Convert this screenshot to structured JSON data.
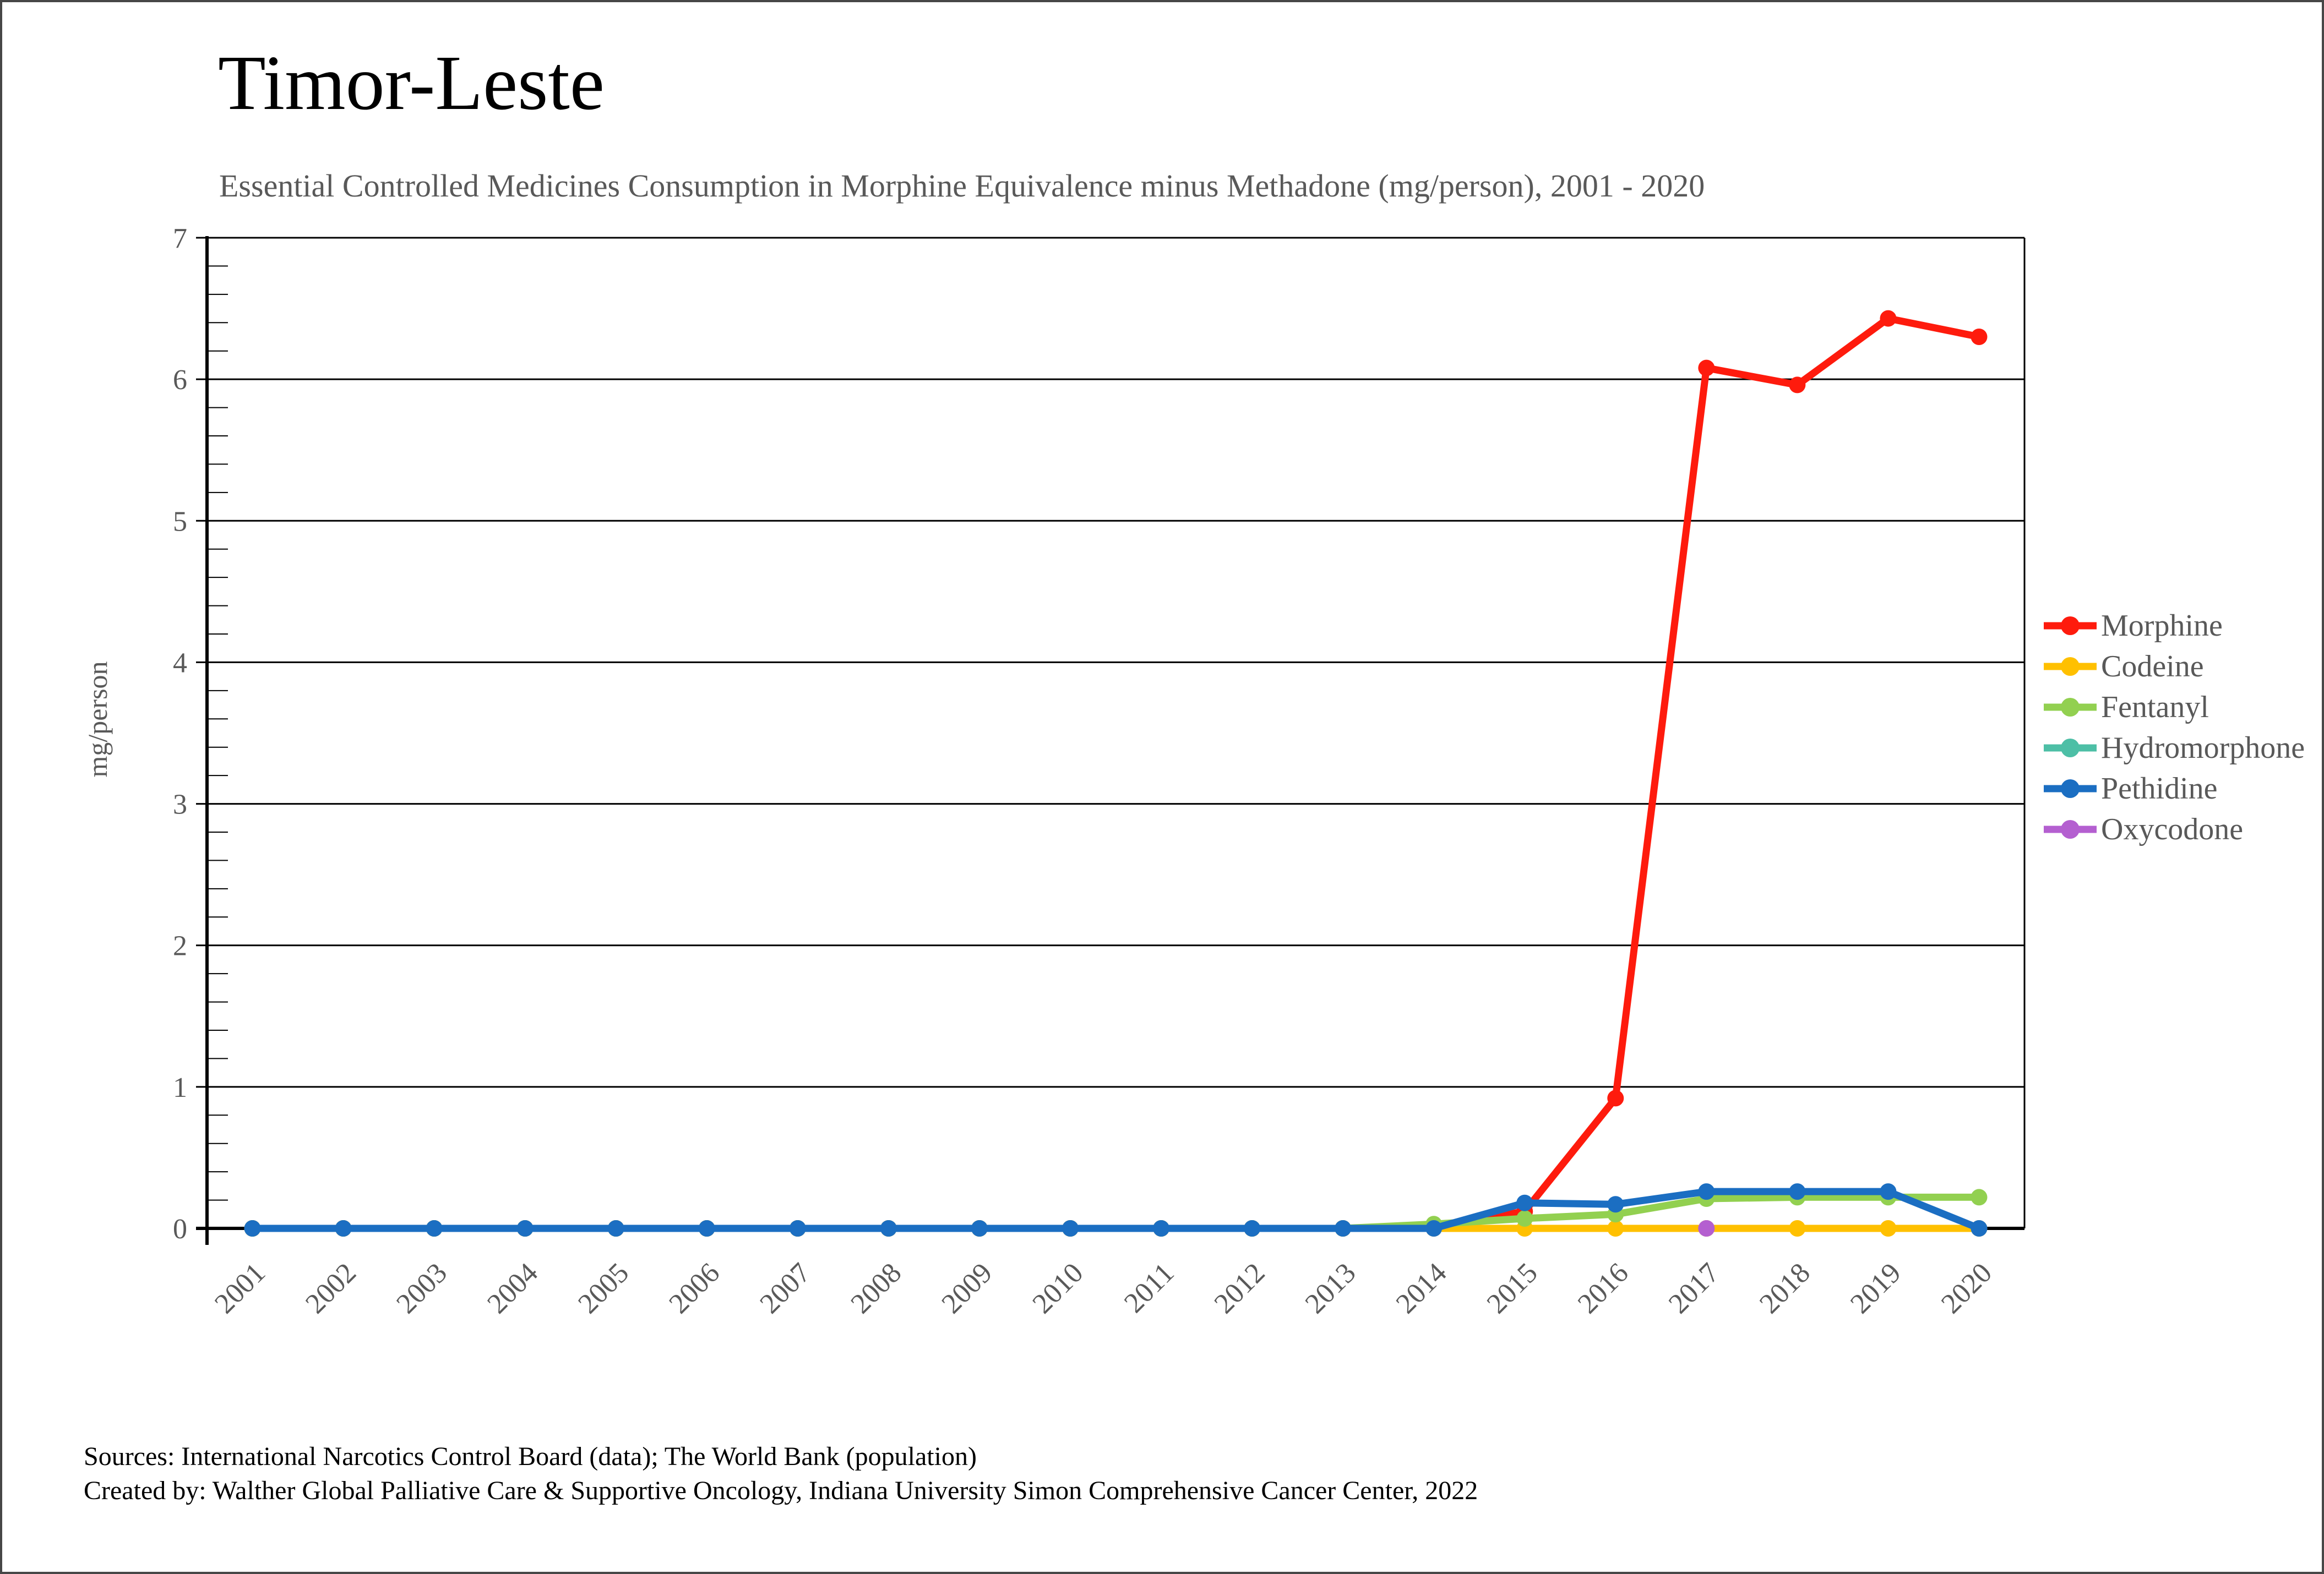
{
  "title": "Timor-Leste",
  "subtitle": "Essential Controlled Medicines Consumption in Morphine Equivalence minus Methadone (mg/person), 2001 - 2020",
  "y_axis_label": "mg/person",
  "sources_line1": "Sources: International Narcotics Control Board (data); The World Bank (population)",
  "sources_line2": "Created by: Walther Global Palliative Care & Supportive Oncology, Indiana University Simon Comprehensive Cancer Center, 2022",
  "chart_data": {
    "type": "line",
    "x": [
      2001,
      2002,
      2003,
      2004,
      2005,
      2006,
      2007,
      2008,
      2009,
      2010,
      2011,
      2012,
      2013,
      2014,
      2015,
      2016,
      2017,
      2018,
      2019,
      2020
    ],
    "title": "Timor-Leste",
    "subtitle": "Essential Controlled Medicines Consumption in Morphine Equivalence minus Methadone (mg/person), 2001 - 2020",
    "xlabel": "",
    "ylabel": "mg/person",
    "ylim": [
      0,
      7
    ],
    "y_ticks": [
      0,
      1,
      2,
      3,
      4,
      5,
      6,
      7
    ],
    "grid": "horizontal-major",
    "legend_position": "right",
    "axis_color": "#000000",
    "tick_label_color": "#595959",
    "series": [
      {
        "name": "Morphine",
        "color": "#fe1b0d",
        "values": [
          0,
          0,
          0,
          0,
          0,
          0,
          0,
          0,
          0,
          0,
          0,
          0,
          0,
          0.01,
          0.12,
          0.92,
          6.08,
          5.96,
          6.43,
          6.3
        ]
      },
      {
        "name": "Codeine",
        "color": "#ffc000",
        "values": [
          0,
          0,
          0,
          0,
          0,
          0,
          0,
          0,
          0,
          0,
          0,
          0,
          0,
          0,
          0,
          0,
          0,
          0,
          0,
          0
        ]
      },
      {
        "name": "Fentanyl",
        "color": "#92d050",
        "values": [
          0,
          0,
          0,
          0,
          0,
          0,
          0,
          0,
          0,
          0,
          0,
          0,
          0,
          0.03,
          0.07,
          0.1,
          0.21,
          0.22,
          0.22,
          0.22
        ]
      },
      {
        "name": "Hydromorphone",
        "color": "#4dbfa6",
        "values": [
          null,
          null,
          null,
          null,
          null,
          null,
          null,
          null,
          null,
          null,
          null,
          null,
          null,
          null,
          null,
          null,
          null,
          null,
          null,
          null
        ]
      },
      {
        "name": "Pethidine",
        "color": "#1b6ec2",
        "values": [
          0,
          0,
          0,
          0,
          0,
          0,
          0,
          0,
          0,
          0,
          0,
          0,
          0,
          0,
          0.18,
          0.17,
          0.26,
          0.26,
          0.26,
          0
        ]
      },
      {
        "name": "Oxycodone",
        "color": "#b45fd0",
        "values": [
          null,
          null,
          null,
          null,
          null,
          null,
          null,
          null,
          null,
          null,
          null,
          null,
          null,
          null,
          null,
          null,
          0,
          null,
          null,
          null
        ]
      }
    ]
  }
}
